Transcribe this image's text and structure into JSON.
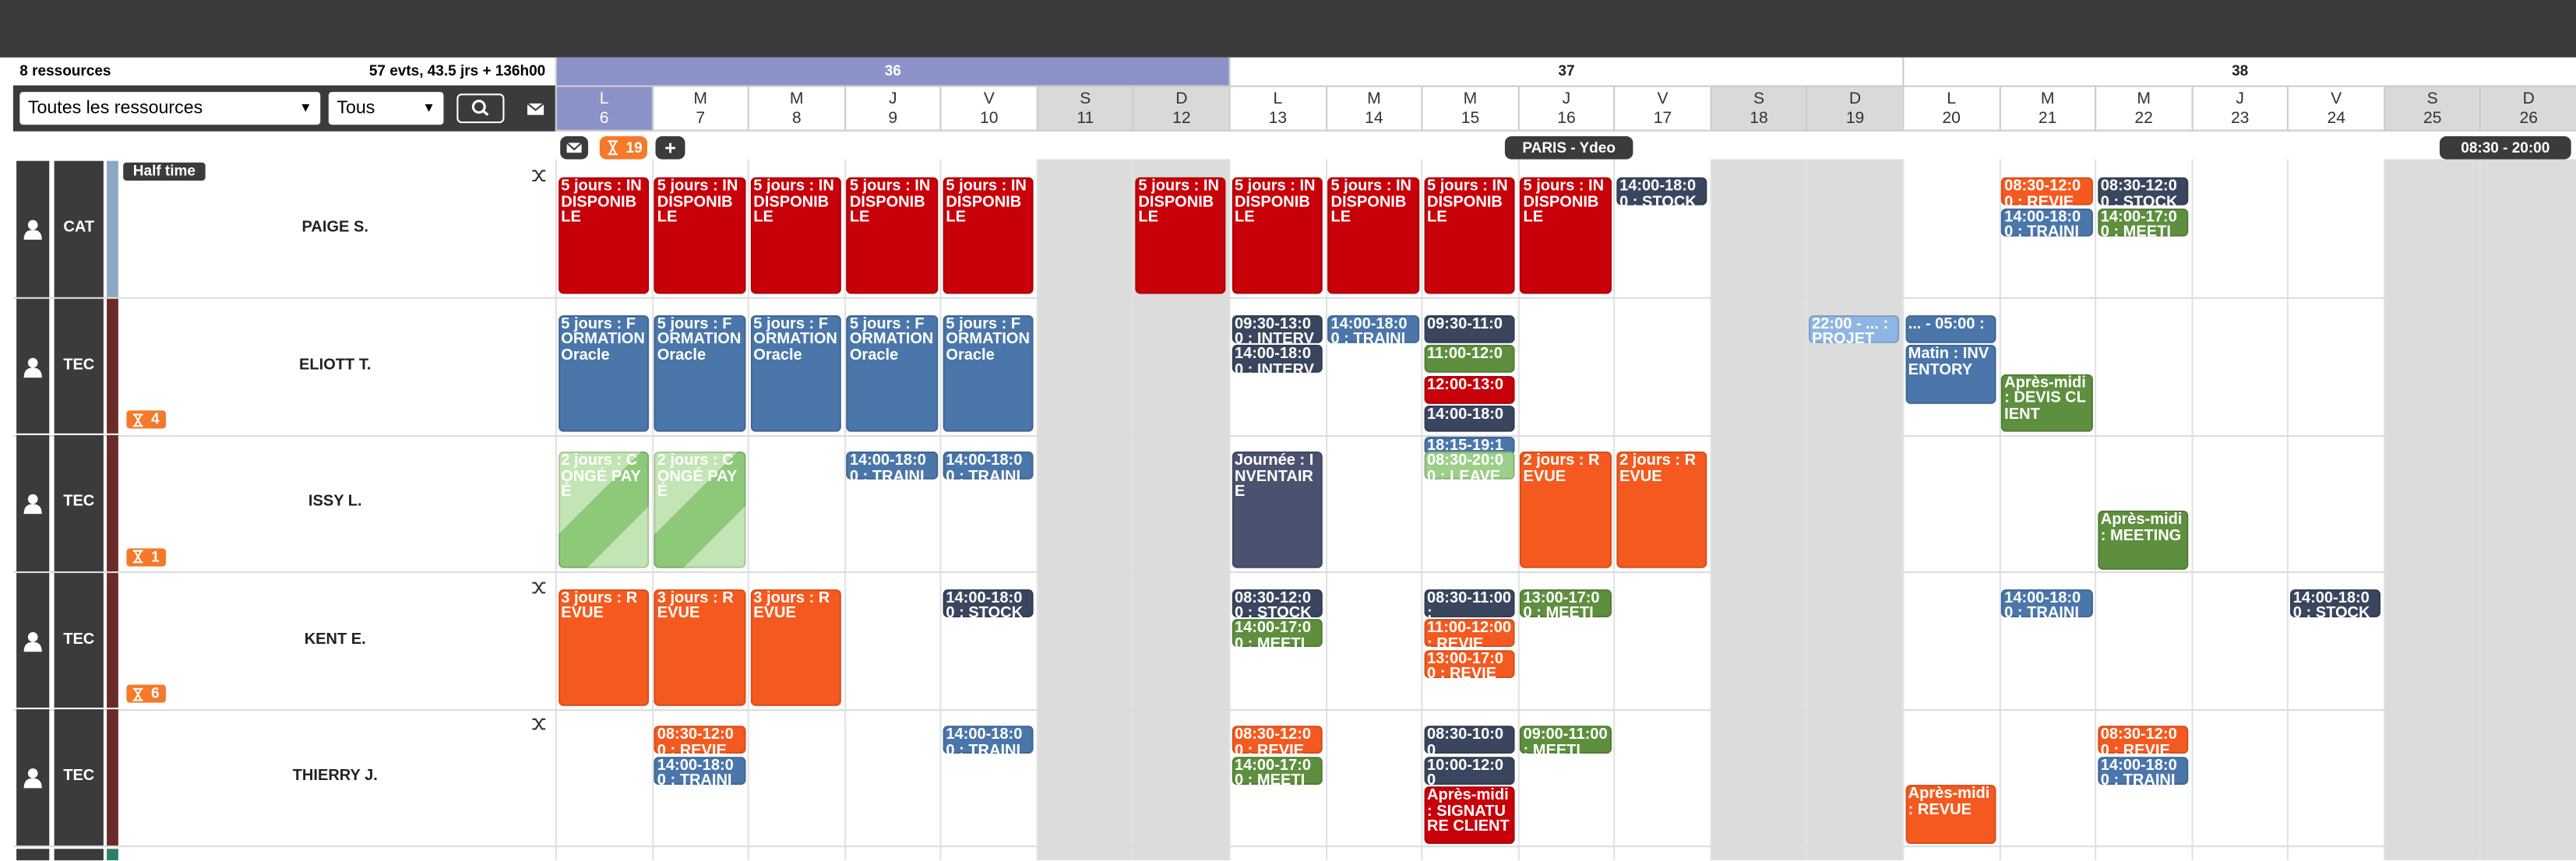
{
  "header": {
    "resources": "8 ressources",
    "summary": "57 evts, 43.5 jrs + 136h00"
  },
  "filters": {
    "resource": "Toutes les ressources",
    "type": "Tous"
  },
  "toolbar": {
    "pending": 19,
    "location": "PARIS - Ydeo",
    "hours": "08:30 - 20:00"
  },
  "weeks": [
    36,
    37,
    38
  ],
  "days": [
    {
      "letter": "L",
      "date": 6
    },
    {
      "letter": "M",
      "date": 7
    },
    {
      "letter": "M",
      "date": 8
    },
    {
      "letter": "J",
      "date": 9
    },
    {
      "letter": "V",
      "date": 10
    },
    {
      "letter": "S",
      "date": 11
    },
    {
      "letter": "D",
      "date": 12
    },
    {
      "letter": "L",
      "date": 13
    },
    {
      "letter": "M",
      "date": 14
    },
    {
      "letter": "M",
      "date": 15
    },
    {
      "letter": "J",
      "date": 16
    },
    {
      "letter": "V",
      "date": 17
    },
    {
      "letter": "S",
      "date": 18
    },
    {
      "letter": "D",
      "date": 19
    },
    {
      "letter": "L",
      "date": 20
    },
    {
      "letter": "M",
      "date": 21
    },
    {
      "letter": "M",
      "date": 22
    },
    {
      "letter": "J",
      "date": 23
    },
    {
      "letter": "V",
      "date": 24
    },
    {
      "letter": "S",
      "date": 25
    },
    {
      "letter": "D",
      "date": 26
    }
  ],
  "rows": [
    {
      "role": "CAT",
      "name": "PAIGE S.",
      "badge": "Half time",
      "color": "#8ea6c6",
      "shuffle": true,
      "days": [
        [
          {
            "text": "5 jours : INDISPONIBLE",
            "color": "#c8000a"
          }
        ],
        [
          {
            "text": "5 jours : INDISPONIBLE",
            "color": "#c8000a"
          }
        ],
        [
          {
            "text": "5 jours : INDISPONIBLE",
            "color": "#c8000a"
          }
        ],
        [
          {
            "text": "5 jours : INDISPONIBLE",
            "color": "#c8000a"
          }
        ],
        [
          {
            "text": "5 jours : INDISPONIBLE",
            "color": "#c8000a"
          }
        ],
        [],
        [
          {
            "text": "5 jours : INDISPONIBLE",
            "color": "#c8000a"
          }
        ],
        [
          {
            "text": "5 jours : INDISPONIBLE",
            "color": "#c8000a"
          }
        ],
        [
          {
            "text": "5 jours : INDISPONIBLE",
            "color": "#c8000a"
          }
        ],
        [
          {
            "text": "5 jours : INDISPONIBLE",
            "color": "#c8000a"
          }
        ],
        [
          {
            "text": "5 jours : INDISPONIBLE",
            "color": "#c8000a"
          }
        ],
        [
          {
            "text": "14:00-18:00 : STOCK",
            "color": "#3a465e"
          }
        ],
        [],
        [],
        [],
        [
          {
            "text": "08:30-12:00 : REVIE",
            "color": "#f45a1f"
          },
          {
            "text": "14:00-18:00 : TRAINI",
            "color": "#4a76aa"
          }
        ],
        [
          {
            "text": "08:30-12:00 : STOCK",
            "color": "#3a465e"
          },
          {
            "text": "14:00-17:00 : MEETI",
            "color": "#5e8f3e"
          }
        ],
        [],
        [],
        [],
        []
      ]
    },
    {
      "role": "TEC",
      "name": "ELIOTT T.",
      "pending": 4,
      "color": "#6b2a2a",
      "days": [
        [
          {
            "text": "5 jours : FORMATION Oracle",
            "color": "#4a76aa"
          }
        ],
        [
          {
            "text": "5 jours : FORMATION Oracle",
            "color": "#4a76aa"
          }
        ],
        [
          {
            "text": "5 jours : FORMATION Oracle",
            "color": "#4a76aa"
          }
        ],
        [
          {
            "text": "5 jours : FORMATION Oracle",
            "color": "#4a76aa"
          }
        ],
        [
          {
            "text": "5 jours : FORMATION Oracle",
            "color": "#4a76aa"
          }
        ],
        [],
        [],
        [
          {
            "text": "09:30-13:00 : INTERV",
            "color": "#3a465e"
          },
          {
            "text": "14:00-18:00 : INTERV",
            "color": "#3a465e"
          }
        ],
        [
          {
            "text": "14:00-18:00 : TRAINI",
            "color": "#4a76aa"
          }
        ],
        [
          {
            "text": "09:30-11:0",
            "color": "#3a465e"
          },
          {
            "text": "11:00-12:0",
            "color": "#5e8f3e"
          },
          {
            "text": "12:00-13:0",
            "color": "#c8000a"
          },
          {
            "text": "14:00-18:0",
            "color": "#3a465e"
          },
          {
            "text": "18:15-19:1",
            "color": "#4a76aa"
          }
        ],
        [],
        [],
        [],
        [
          {
            "text": "22:00 - ... : PROJET",
            "color": "#8fb6e2"
          }
        ],
        [
          {
            "text": "... - 05:00 :",
            "color": "#4a76aa"
          },
          {
            "text": "Matin : INVENTORY",
            "color": "#4a76aa"
          }
        ],
        [
          {
            "text": "Après-midi : DEVIS CLIENT",
            "color": "#5e8f3e"
          }
        ],
        [],
        [],
        [],
        [],
        []
      ]
    },
    {
      "role": "TEC",
      "name": "ISSY L.",
      "pending": 1,
      "color": "#6b2a2a",
      "days": [
        [
          {
            "text": "2 jours : CONGÉ PAYÉ",
            "color": "#9ccf88",
            "striped": true
          }
        ],
        [
          {
            "text": "2 jours : CONGÉ PAYÉ",
            "color": "#9ccf88",
            "striped": true
          }
        ],
        [],
        [
          {
            "text": "14:00-18:00 : TRAINI",
            "color": "#4a76aa"
          }
        ],
        [
          {
            "text": "14:00-18:00 : TRAINI",
            "color": "#4a76aa"
          }
        ],
        [],
        [],
        [
          {
            "text": "Journée : INVENTAIRE",
            "color": "#4b5270"
          }
        ],
        [],
        [
          {
            "text": "08:30-20:00 : LEAVE",
            "color": "#9dcf8a"
          }
        ],
        [
          {
            "text": "2 jours : REVUE",
            "color": "#f45a1f"
          }
        ],
        [
          {
            "text": "2 jours : REVUE",
            "color": "#f45a1f"
          }
        ],
        [],
        [],
        [],
        [],
        [
          {
            "text": "Après-midi : MEETING",
            "color": "#5e8f3e"
          }
        ],
        [],
        [],
        [],
        []
      ]
    },
    {
      "role": "TEC",
      "name": "KENT E.",
      "pending": 6,
      "color": "#6b2a2a",
      "shuffle": true,
      "days": [
        [
          {
            "text": "3 jours : REVUE",
            "color": "#f45a1f"
          }
        ],
        [
          {
            "text": "3 jours : REVUE",
            "color": "#f45a1f"
          }
        ],
        [
          {
            "text": "3 jours : REVUE",
            "color": "#f45a1f"
          }
        ],
        [],
        [
          {
            "text": "14:00-18:00 : STOCK",
            "color": "#3a465e"
          }
        ],
        [],
        [],
        [
          {
            "text": "08:30-12:00 : STOCK",
            "color": "#3a465e"
          },
          {
            "text": "14:00-17:00 : MEETI",
            "color": "#5e8f3e"
          }
        ],
        [],
        [
          {
            "text": "08:30-11:00 :",
            "color": "#3a465e"
          },
          {
            "text": "11:00-12:00 : REVIE",
            "color": "#f45a1f"
          },
          {
            "text": "13:00-17:00 : REVIE",
            "color": "#f45a1f"
          }
        ],
        [
          {
            "text": "13:00-17:00 : MEETI",
            "color": "#5e8f3e"
          }
        ],
        [],
        [],
        [],
        [],
        [
          {
            "text": "14:00-18:00 : TRAINI",
            "color": "#4a76aa"
          }
        ],
        [],
        [],
        [
          {
            "text": "14:00-18:00 : STOCK",
            "color": "#3a465e"
          }
        ],
        [],
        []
      ]
    },
    {
      "role": "TEC",
      "name": "THIERRY J.",
      "color": "#6b2a2a",
      "shuffle": true,
      "days": [
        [],
        [
          {
            "text": "08:30-12:00 : REVIE",
            "color": "#f45a1f"
          },
          {
            "text": "14:00-18:00 : TRAINI",
            "color": "#4a76aa"
          }
        ],
        [],
        [],
        [
          {
            "text": "14:00-18:00 : TRAINI",
            "color": "#4a76aa"
          }
        ],
        [],
        [],
        [
          {
            "text": "08:30-12:00 : REVIE",
            "color": "#f45a1f"
          },
          {
            "text": "14:00-17:00 : MEETI",
            "color": "#5e8f3e"
          }
        ],
        [],
        [
          {
            "text": "08:30-10:00",
            "color": "#3a465e"
          },
          {
            "text": "10:00-12:00",
            "color": "#3a465e"
          },
          {
            "text": "Après-midi : SIGNATURE CLIENT",
            "color": "#c8000a"
          }
        ],
        [
          {
            "text": "09:00-11:00 : MEETI",
            "color": "#5e8f3e"
          }
        ],
        [],
        [],
        [],
        [
          {
            "text": "Après-midi : REVUE",
            "color": "#f45a1f"
          }
        ],
        [],
        [
          {
            "text": "08:30-12:00 : REVIE",
            "color": "#f45a1f"
          },
          {
            "text": "14:00-18:00 : TRAINI",
            "color": "#4a76aa"
          }
        ],
        [],
        [],
        [],
        []
      ]
    }
  ]
}
